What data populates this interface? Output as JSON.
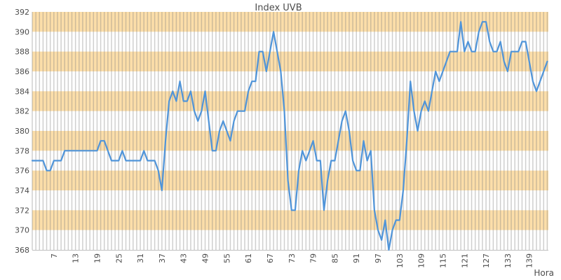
{
  "page": {
    "title": "Index UVB"
  },
  "chart_data": {
    "type": "line",
    "title": "Index UVB",
    "xlabel": "Hora",
    "ylabel": "",
    "legend": "none",
    "xlim": [
      1,
      144
    ],
    "ylim": [
      368,
      392
    ],
    "x_start": 1,
    "x_step": 1,
    "grid": "vertical gridline at every x unit; horizontal alternating fill bands every 2 units",
    "y_ticks": [
      368,
      370,
      372,
      374,
      376,
      378,
      380,
      382,
      384,
      386,
      388,
      390,
      392
    ],
    "x_tick_labels": [
      7,
      13,
      19,
      25,
      31,
      37,
      43,
      49,
      55,
      61,
      67,
      73,
      79,
      85,
      91,
      97,
      103,
      109,
      115,
      121,
      127,
      133,
      139
    ],
    "band_ranges": [
      [
        370,
        372
      ],
      [
        374,
        376
      ],
      [
        378,
        380
      ],
      [
        382,
        384
      ],
      [
        386,
        388
      ],
      [
        390,
        392
      ]
    ],
    "values": [
      377,
      377,
      377,
      377,
      376,
      376,
      377,
      377,
      377,
      378,
      378,
      378,
      378,
      378,
      378,
      378,
      378,
      378,
      378,
      379,
      379,
      378,
      377,
      377,
      377,
      378,
      377,
      377,
      377,
      377,
      377,
      378,
      377,
      377,
      377,
      376,
      374,
      379,
      383,
      384,
      383,
      385,
      383,
      383,
      384,
      382,
      381,
      382,
      384,
      381,
      378,
      378,
      380,
      381,
      380,
      379,
      381,
      382,
      382,
      382,
      384,
      385,
      385,
      388,
      388,
      386,
      388,
      390,
      388,
      386,
      382,
      375,
      372,
      372,
      376,
      378,
      377,
      378,
      379,
      377,
      377,
      372,
      375,
      377,
      377,
      379,
      381,
      382,
      380,
      377,
      376,
      376,
      379,
      377,
      378,
      372,
      370,
      369,
      371,
      368,
      370,
      371,
      371,
      374,
      379,
      385,
      382,
      380,
      382,
      383,
      382,
      384,
      386,
      385,
      386,
      387,
      388,
      388,
      388,
      391,
      388,
      389,
      388,
      388,
      390,
      391,
      391,
      389,
      388,
      388,
      389,
      387,
      386,
      388,
      388,
      388,
      389,
      389,
      387,
      385,
      384,
      385,
      386,
      387
    ],
    "colors": {
      "line": "#4f94d9",
      "band": "#fcdea9",
      "gridline": "#c9c9c9",
      "axis_line": "#c0c0c0",
      "text": "#4c4c4c",
      "background": "#ffffff"
    }
  }
}
